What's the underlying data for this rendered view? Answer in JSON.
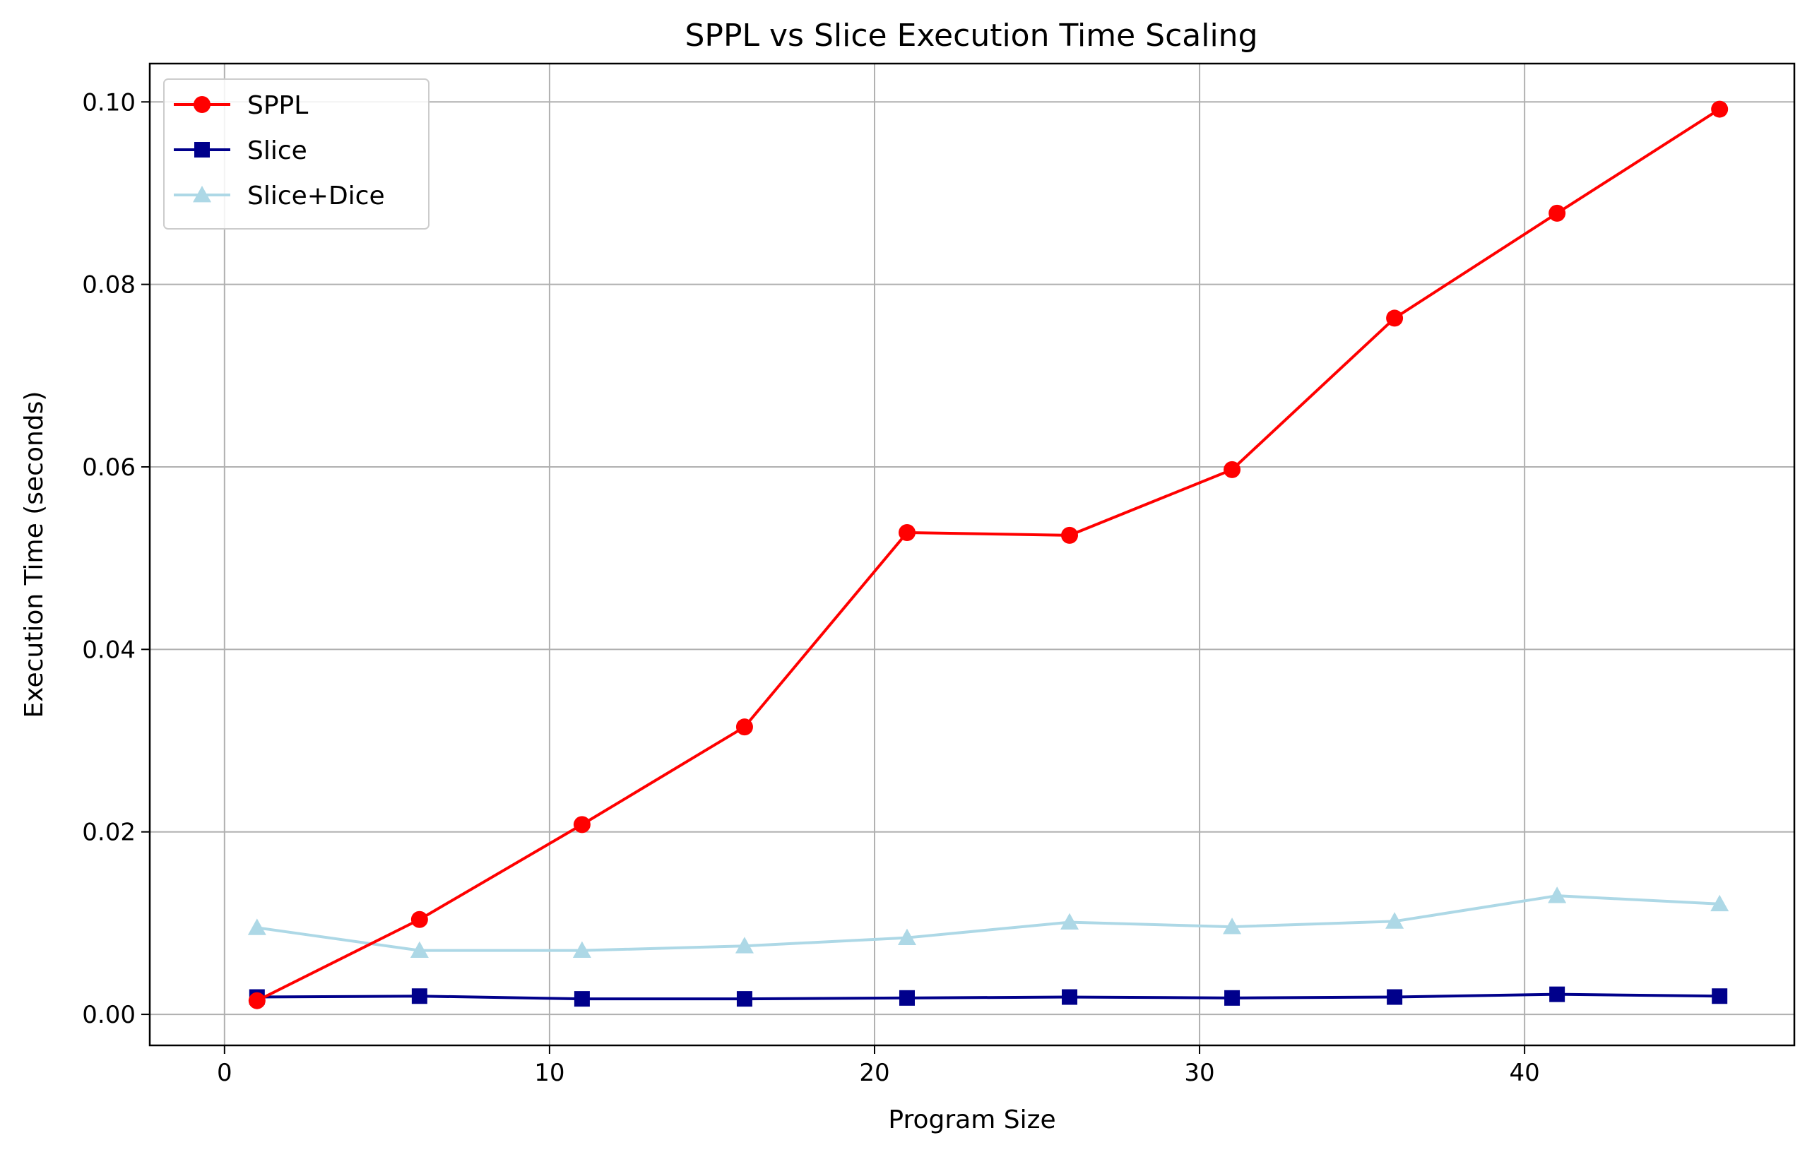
{
  "chart_data": {
    "type": "line",
    "title": "SPPL vs Slice Execution Time Scaling",
    "xlabel": "Program Size",
    "ylabel": "Execution Time (seconds)",
    "xlim": [
      -2.3,
      48.3
    ],
    "ylim": [
      -0.0034,
      0.1042
    ],
    "xticks": [
      0,
      10,
      20,
      30,
      40
    ],
    "xtick_labels": [
      "0",
      "10",
      "20",
      "30",
      "40"
    ],
    "yticks": [
      0.0,
      0.02,
      0.04,
      0.06,
      0.08,
      0.1
    ],
    "ytick_labels": [
      "0.00",
      "0.02",
      "0.04",
      "0.06",
      "0.08",
      "0.10"
    ],
    "grid": true,
    "legend_position": "upper-left",
    "x": [
      1,
      6,
      11,
      16,
      21,
      26,
      31,
      36,
      41,
      46
    ],
    "series": [
      {
        "name": "SPPL",
        "color": "#ff0000",
        "marker": "circle",
        "values": [
          0.0015,
          0.0104,
          0.0208,
          0.0315,
          0.0528,
          0.0525,
          0.0597,
          0.0763,
          0.0878,
          0.0992
        ]
      },
      {
        "name": "Slice",
        "color": "#00008b",
        "marker": "square",
        "values": [
          0.0019,
          0.002,
          0.0017,
          0.0017,
          0.0018,
          0.0019,
          0.0018,
          0.0019,
          0.0022,
          0.002
        ]
      },
      {
        "name": "Slice+Dice",
        "color": "#add8e6",
        "marker": "triangle",
        "values": [
          0.0095,
          0.007,
          0.007,
          0.0075,
          0.0084,
          0.0101,
          0.0096,
          0.0102,
          0.013,
          0.0121
        ]
      }
    ]
  }
}
